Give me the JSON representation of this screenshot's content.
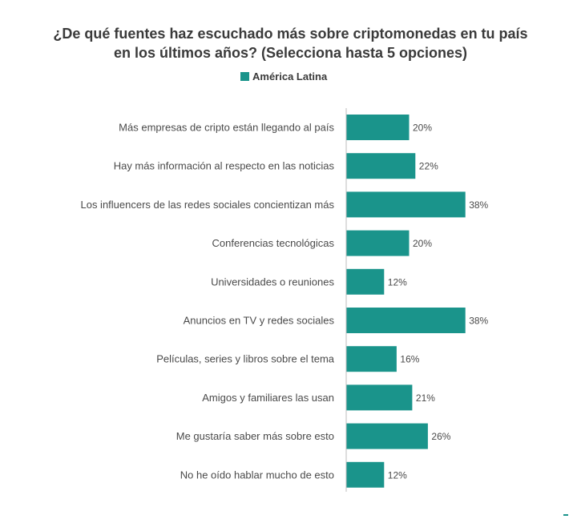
{
  "chart_data": {
    "type": "bar",
    "orientation": "horizontal",
    "title": [
      "¿De qué fuentes haz escuchado más sobre criptomonedas en tu país",
      "en los últimos años? (Selecciona hasta 5 opciones)"
    ],
    "legend": "América Latina",
    "legend_position": "top-center",
    "color": "#1a948b",
    "categories": [
      "Más empresas de cripto están llegando al país",
      "Hay más información al respecto en las noticias",
      "Los influencers de las redes sociales concientizan más",
      "Conferencias tecnológicas",
      "Universidades o reuniones",
      "Anuncios en TV y redes sociales",
      "Películas, series y libros sobre el tema",
      "Amigos y familiares las usan",
      "Me gustaría saber más sobre esto",
      "No he oído hablar mucho de esto"
    ],
    "series": [
      {
        "name": "América Latina",
        "values": [
          20,
          22,
          38,
          20,
          12,
          38,
          16,
          21,
          26,
          12
        ],
        "labels": [
          "20%",
          "22%",
          "38%",
          "20%",
          "12%",
          "38%",
          "16%",
          "21%",
          "26%",
          "12%"
        ]
      }
    ],
    "grid": false
  }
}
